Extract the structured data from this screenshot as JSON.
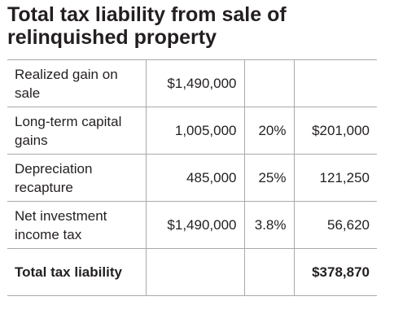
{
  "title": "Total tax liability from sale of relinquished property",
  "table": {
    "rows": [
      {
        "label": "Realized gain on sale",
        "amount": "$1,490,000",
        "rate": "",
        "tax": ""
      },
      {
        "label": "Long-term capital gains",
        "amount": "1,005,000",
        "rate": "20%",
        "tax": "$201,000"
      },
      {
        "label": "Depreciation recapture",
        "amount": "485,000",
        "rate": "25%",
        "tax": "121,250"
      },
      {
        "label": "Net investment income tax",
        "amount": "$1,490,000",
        "rate": "3.8%",
        "tax": "56,620"
      },
      {
        "label": "Total tax liability",
        "amount": "",
        "rate": "",
        "tax": "$378,870"
      }
    ]
  }
}
